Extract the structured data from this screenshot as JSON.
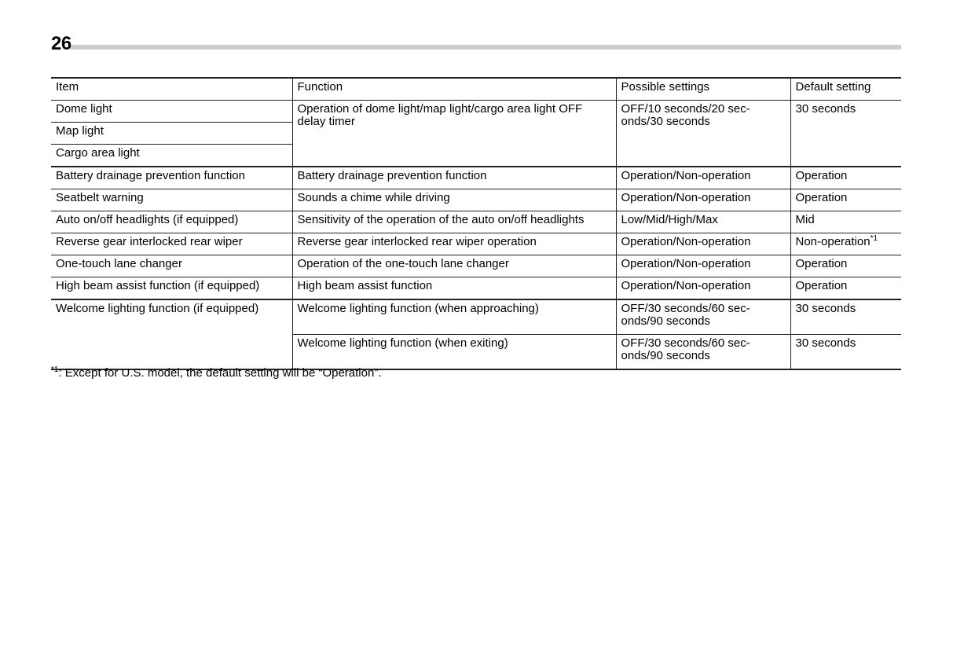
{
  "page_number": "26",
  "table": {
    "headers": [
      "Item",
      "Function",
      "Possible settings",
      "Default setting"
    ],
    "lights": {
      "items": [
        "Dome light",
        "Map light",
        "Cargo area light"
      ],
      "function": "Operation of dome light/map light/cargo area light OFF delay timer",
      "settings": "OFF/10 seconds/20 sec-\nonds/30 seconds",
      "default": "30 seconds"
    },
    "rows": [
      {
        "item": "Battery drainage prevention function",
        "function": "Battery drainage prevention function",
        "settings": "Operation/Non-operation",
        "default": "Operation"
      },
      {
        "item": "Seatbelt warning",
        "function": "Sounds a chime while driving",
        "settings": "Operation/Non-operation",
        "default": "Operation"
      },
      {
        "item": "Auto on/off headlights (if equipped)",
        "function": "Sensitivity of the operation of the auto on/off headlights",
        "settings": "Low/Mid/High/Max",
        "default": "Mid"
      },
      {
        "item": "Reverse gear interlocked rear wiper",
        "function": "Reverse gear interlocked rear wiper operation",
        "settings": "Operation/Non-operation",
        "default": "Non-operation",
        "default_note": "*1"
      },
      {
        "item": "One-touch lane changer",
        "function": "Operation of the one-touch lane changer",
        "settings": "Operation/Non-operation",
        "default": "Operation"
      },
      {
        "item": "High beam assist function (if equipped)",
        "function": "High beam assist function",
        "settings": "Operation/Non-operation",
        "default": "Operation"
      }
    ],
    "welcome": {
      "item": "Welcome lighting function (if equipped)",
      "subrows": [
        {
          "function": "Welcome lighting function (when approaching)",
          "settings": "OFF/30 seconds/60 sec-\nonds/90 seconds",
          "default": "30 seconds"
        },
        {
          "function": "Welcome lighting function (when exiting)",
          "settings": "OFF/30 seconds/60 sec-\nonds/90 seconds",
          "default": "30 seconds"
        }
      ]
    }
  },
  "footnote": {
    "mark": "*1",
    "text": ": Except for U.S. model, the default setting will be “Operation”."
  }
}
